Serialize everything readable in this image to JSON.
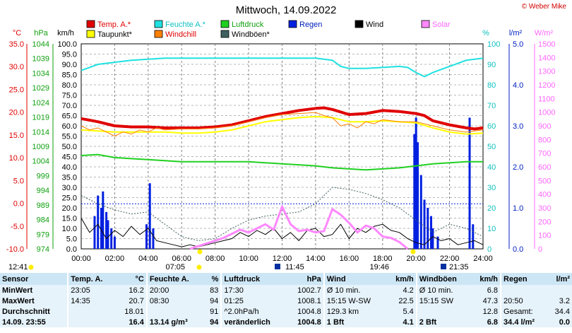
{
  "title": "Mittwoch, 14.09.2022",
  "copyright": "© Weber Mike",
  "axes": {
    "temp_unit": "°C",
    "press_unit": "hPa",
    "wind_unit": "km/h",
    "hum_unit": "%",
    "rain_unit": "l/m²",
    "solar_unit": "W/m²"
  },
  "legend": [
    {
      "label": "Temp. A.*",
      "color": "#e00000"
    },
    {
      "label": "Feuchte A.*",
      "color": "#20e0e0"
    },
    {
      "label": "Luftdruck",
      "color": "#20d020"
    },
    {
      "label": "Regen",
      "color": "#0020e0"
    },
    {
      "label": "Wind",
      "color": "#000000"
    },
    {
      "label": "Solar",
      "color": "#ff88ff"
    },
    {
      "label": "Taupunkt*",
      "color": "#ffff00"
    },
    {
      "label": "Windchill",
      "color": "#ff8000"
    },
    {
      "label": "Windböen*",
      "color": "#406060"
    }
  ],
  "chart_data": {
    "type": "line",
    "title": "Mittwoch, 14.09.2022",
    "x_ticks": [
      "00:00",
      "02:00",
      "04:00",
      "06:00",
      "08:00",
      "10:00",
      "12:00",
      "14:00",
      "16:00",
      "18:00",
      "20:00",
      "22:00",
      "24:00"
    ],
    "temp_ticks": [
      "35.0",
      "30.0",
      "25.0",
      "20.0",
      "15.0",
      "10.0",
      "5.0",
      "0.0",
      "-5.0",
      "-10.0"
    ],
    "press_ticks": [
      "1044",
      "1039",
      "1034",
      "1029",
      "1024",
      "1019",
      "1014",
      "1009",
      "1004",
      "999",
      "994",
      "989",
      "984",
      "979",
      "974"
    ],
    "wind_ticks": [
      "100.0",
      "95.0",
      "90.0",
      "85.0",
      "80.0",
      "75.0",
      "70.0",
      "65.0",
      "60.0",
      "55.0",
      "50.0",
      "45.0",
      "40.0",
      "35.0",
      "30.0",
      "25.0",
      "20.0",
      "15.0",
      "10.0",
      "5.0",
      "0.0"
    ],
    "hum_ticks": [
      "100",
      "90",
      "80",
      "70",
      "60",
      "50",
      "40",
      "30",
      "20",
      "10",
      "0"
    ],
    "rain_ticks": [
      "5.0",
      "4.0",
      "3.0",
      "2.0",
      "1.0",
      "0.0"
    ],
    "solar_ticks": [
      "1500",
      "1400",
      "1300",
      "1200",
      "1100",
      "1000",
      "900",
      "800",
      "700",
      "600",
      "500",
      "400",
      "300",
      "200",
      "100",
      "0"
    ],
    "wind_range": [
      0,
      100
    ],
    "hum_range": [
      0,
      100
    ],
    "rain_range": [
      0,
      5
    ],
    "solar_range": [
      0,
      1500
    ],
    "series": [
      {
        "name": "Temp. A.*",
        "axis": "wind",
        "color": "#e00000",
        "width": 4,
        "x": [
          0,
          1,
          2,
          3,
          4,
          5,
          6,
          7,
          8,
          9,
          10,
          11,
          12,
          13,
          14,
          14.5,
          15,
          16,
          17,
          18,
          19,
          20,
          20.5,
          21,
          22,
          23,
          23.5,
          24
        ],
        "y": [
          63.5,
          62,
          60,
          59.5,
          59.5,
          59,
          59,
          59,
          59.5,
          60.5,
          62.5,
          64.5,
          66,
          67.5,
          68.5,
          68.8,
          68,
          65.5,
          66,
          67.5,
          67,
          66,
          65,
          62.5,
          60.5,
          59,
          58.5,
          59
        ]
      },
      {
        "name": "Taupunkt*",
        "axis": "wind",
        "color": "#ffff00",
        "width": 2,
        "x": [
          0,
          1,
          2,
          3,
          4,
          5,
          6,
          7,
          8,
          9,
          10,
          11,
          12,
          13,
          14,
          15,
          16,
          17,
          18,
          19,
          20,
          21,
          22,
          23,
          24
        ],
        "y": [
          58,
          57.5,
          57,
          57,
          57,
          57,
          56.5,
          56.5,
          57,
          58,
          60,
          62,
          63,
          64,
          64.5,
          64,
          62,
          62,
          62.5,
          62,
          61.5,
          59,
          57,
          56,
          56.5
        ]
      },
      {
        "name": "Windchill",
        "axis": "wind",
        "color": "#ff8000",
        "width": 1,
        "x": [
          0,
          0.5,
          1,
          1.5,
          2,
          2.5,
          3,
          3.5,
          4,
          4.5,
          5,
          6,
          7,
          8,
          9,
          10,
          11,
          12,
          13,
          14,
          14.5,
          15,
          15.5,
          16,
          16.5,
          17,
          17.5,
          18,
          19,
          20,
          21,
          22,
          23,
          24
        ],
        "y": [
          60,
          58,
          59,
          57,
          55,
          57,
          56,
          58,
          57,
          59,
          58,
          58.5,
          58.5,
          59,
          60,
          62,
          64,
          65.5,
          66,
          66.5,
          65,
          64,
          60,
          61,
          59,
          62,
          61,
          63,
          62,
          62,
          60,
          58,
          57,
          58
        ]
      },
      {
        "name": "Feuchte A.*",
        "axis": "hum",
        "color": "#20e0e0",
        "width": 2,
        "x": [
          0,
          1,
          2,
          3,
          4,
          5,
          6,
          7,
          8,
          9,
          10,
          11,
          12,
          13,
          14,
          15,
          15.5,
          16,
          17,
          18,
          19,
          19.5,
          20,
          20.5,
          21,
          22,
          23,
          24
        ],
        "y": [
          87,
          90,
          91,
          92,
          92.5,
          93,
          93,
          93,
          93,
          93,
          93,
          93,
          93,
          93,
          93,
          92,
          89,
          88,
          88,
          88.5,
          89,
          88.5,
          86,
          84,
          86,
          89,
          92,
          93
        ]
      },
      {
        "name": "Luftdruck",
        "axis": "wind",
        "color": "#20d020",
        "width": 2,
        "x": [
          0,
          1,
          2,
          3,
          4,
          5,
          6,
          7,
          8,
          9,
          10,
          11,
          12,
          13,
          14,
          15,
          16,
          17,
          18,
          19,
          20,
          21,
          22,
          23,
          24
        ],
        "y": [
          45.5,
          46,
          44.5,
          44,
          43.5,
          43,
          42.5,
          42.5,
          42.5,
          42.5,
          42.5,
          42,
          41.5,
          41,
          40.5,
          39.5,
          39,
          38.5,
          39,
          39.5,
          40.5,
          41.5,
          42,
          42.5,
          42.5
        ]
      },
      {
        "name": "Wind",
        "axis": "wind",
        "color": "#000000",
        "width": 1,
        "x": [
          0,
          0.5,
          1,
          1.5,
          2,
          2.5,
          3,
          3.5,
          4,
          4.5,
          5,
          5.5,
          6,
          6.5,
          7,
          7.5,
          8,
          8.5,
          9,
          9.5,
          10,
          10.5,
          11,
          11.5,
          12,
          12.5,
          13,
          13.5,
          14,
          14.5,
          15,
          15.5,
          16,
          16.5,
          17,
          17.5,
          18,
          18.5,
          19,
          19.5,
          20,
          20.5,
          21,
          21.5,
          22,
          22.5,
          23,
          23.5,
          24
        ],
        "y": [
          15,
          8,
          12,
          5,
          9,
          6,
          11,
          7,
          10,
          4,
          3,
          2,
          1,
          2,
          1,
          2,
          3,
          4,
          5,
          8,
          6,
          9,
          7,
          10,
          5,
          8,
          4,
          9,
          10,
          6,
          7,
          12,
          5,
          10,
          8,
          11,
          12,
          9,
          8,
          5,
          3,
          2,
          6,
          4,
          5,
          2,
          3,
          4,
          2
        ]
      },
      {
        "name": "Windböen*",
        "axis": "wind",
        "color": "#406060",
        "width": 1,
        "dash": "2,2",
        "x": [
          0,
          1,
          2,
          3,
          4,
          5,
          6,
          7,
          8,
          9,
          10,
          11,
          12,
          13,
          14,
          15,
          16,
          17,
          18,
          19,
          20,
          21,
          22,
          23,
          24
        ],
        "y": [
          26,
          22,
          19,
          17,
          18,
          12,
          6,
          4,
          5,
          10,
          14,
          16,
          17,
          18,
          22,
          30,
          29,
          27,
          24,
          20,
          14,
          8,
          12,
          10,
          6
        ]
      },
      {
        "name": "Solar",
        "axis": "solar",
        "color": "#ff88ff",
        "width": 3,
        "x": [
          6.5,
          7,
          7.5,
          8,
          8.5,
          9,
          9.5,
          10,
          10.5,
          11,
          11.5,
          12,
          12.5,
          13,
          13.5,
          14,
          14.5,
          15,
          15.5,
          16,
          16.5,
          17,
          17.5,
          18,
          18.5,
          19,
          19.5
        ],
        "y": [
          0,
          20,
          40,
          60,
          80,
          110,
          140,
          120,
          150,
          180,
          140,
          310,
          180,
          130,
          140,
          120,
          130,
          290,
          250,
          190,
          120,
          170,
          150,
          90,
          80,
          50,
          0
        ]
      }
    ],
    "rain_x": [
      0.8,
      1.0,
      1.2,
      1.3,
      1.5,
      1.6,
      1.8,
      2.0,
      3.9,
      4.1,
      4.3,
      19.9,
      20.0,
      20.1,
      20.3,
      20.5,
      20.7,
      20.9,
      21.0,
      21.3,
      23.2,
      23.4
    ],
    "rain_y": [
      0.8,
      1.3,
      1.0,
      1.4,
      0.9,
      0.7,
      0.5,
      0.3,
      0.6,
      1.6,
      0.5,
      2.8,
      3.2,
      2.6,
      1.8,
      1.2,
      1.0,
      0.8,
      0.5,
      0.3,
      3.2,
      0.6
    ],
    "reference_rain_line": 1.1,
    "sun_markers": [
      {
        "label": "12:41",
        "pos": "left"
      },
      {
        "label": "07:05",
        "pos": "below"
      },
      {
        "label": "11:45",
        "pos": "below"
      },
      {
        "label": "19:46",
        "pos": "below"
      },
      {
        "label": "21:35",
        "pos": "below"
      }
    ]
  },
  "stats": {
    "headers": [
      "Sensor",
      "Temp. A.",
      "°C",
      "Feuchte A.",
      "%",
      "Luftdruck",
      "hPa",
      "Wind",
      "km/h",
      "Windböen",
      "km/h",
      "Regen",
      "l/m²"
    ],
    "rows": [
      [
        "MinWert",
        "23:05",
        "16.2",
        "20:00",
        "83",
        "17:30",
        "1002.7",
        "Ø 10 min.",
        "4.2",
        "Ø 10 min.",
        "6.8",
        "",
        ""
      ],
      [
        "MaxWert",
        "14:35",
        "20.7",
        "08:30",
        "94",
        "01:25",
        "1008.1",
        "15:15  W-SW",
        "22.5",
        "15:15  SW",
        "47.3",
        "20:50",
        "3.2"
      ],
      [
        "Durchschnitt",
        "",
        "18.01",
        "",
        "91",
        "^2.0hPa/h",
        "1004.8",
        "129.3 km",
        "5.4",
        "",
        "12.8",
        "Gesamt:",
        "34.4"
      ],
      [
        "14.09.  23:55",
        "",
        "16.4",
        "13.14 g/m³",
        "94",
        "veränderlich",
        "1004.8",
        "1 Bft",
        "4.1",
        "2 Bft",
        "6.8",
        "34.4 l/m²",
        "0.0"
      ]
    ]
  }
}
